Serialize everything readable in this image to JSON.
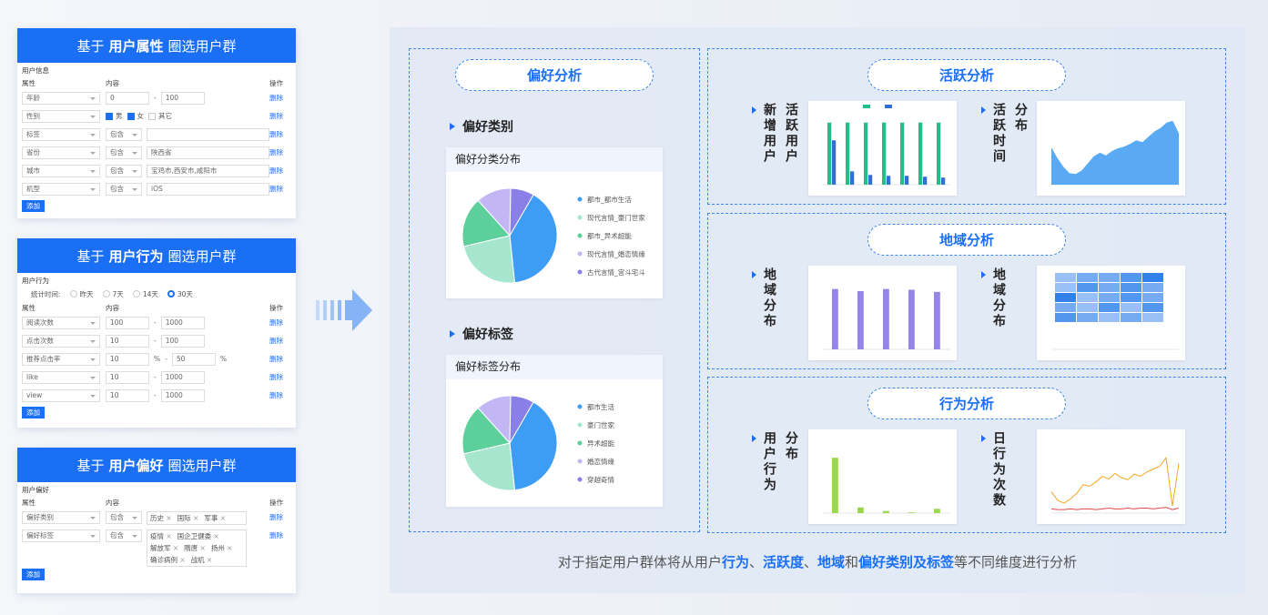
{
  "forms": [
    {
      "title_pre": "基于",
      "title_bold": "用户属性",
      "title_post": "圈选用户群",
      "section": "用户信息",
      "headers": [
        "属性",
        "内容",
        "操作"
      ],
      "rows": [
        {
          "attr": "年龄",
          "content": [
            {
              "kind": "input",
              "text": "0"
            },
            {
              "kind": "sep",
              "text": "-"
            },
            {
              "kind": "input",
              "text": "100"
            }
          ],
          "action": "删除"
        },
        {
          "attr": "性别",
          "content": [
            {
              "kind": "check",
              "text": "男",
              "checked": true
            },
            {
              "kind": "check",
              "text": "女",
              "checked": true
            },
            {
              "kind": "check",
              "text": "其它",
              "checked": false
            }
          ],
          "action": "删除"
        },
        {
          "attr": "标签",
          "content": [
            {
              "kind": "select",
              "text": "包含"
            },
            {
              "kind": "input"
            }
          ],
          "action": "删除"
        },
        {
          "attr": "省份",
          "content": [
            {
              "kind": "select",
              "text": "包含"
            },
            {
              "kind": "input",
              "text": "陕西省"
            }
          ],
          "action": "删除"
        },
        {
          "attr": "城市",
          "content": [
            {
              "kind": "select",
              "text": "包含"
            },
            {
              "kind": "input",
              "text": "宝鸡市,西安市,咸阳市"
            }
          ],
          "action": "删除"
        },
        {
          "attr": "机型",
          "content": [
            {
              "kind": "select",
              "text": "包含"
            },
            {
              "kind": "input",
              "text": "iOS"
            }
          ],
          "action": "删除"
        }
      ],
      "add": "添加"
    },
    {
      "title_pre": "基于",
      "title_bold": "用户行为",
      "title_post": "圈选用户群",
      "section": "用户行为",
      "period": {
        "label": "统计时间:",
        "options": [
          "昨天",
          "7天",
          "14天",
          "30天"
        ],
        "selected": 3
      },
      "headers": [
        "属性",
        "内容",
        "操作"
      ],
      "rows": [
        {
          "attr": "阅读次数",
          "content": [
            {
              "kind": "input",
              "text": "100"
            },
            {
              "kind": "sep",
              "text": "-"
            },
            {
              "kind": "input",
              "text": "1000"
            }
          ],
          "action": "删除"
        },
        {
          "attr": "点击次数",
          "content": [
            {
              "kind": "input",
              "text": "10"
            },
            {
              "kind": "sep",
              "text": "-"
            },
            {
              "kind": "input",
              "text": "100"
            }
          ],
          "action": "删除"
        },
        {
          "attr": "推荐点击率",
          "content": [
            {
              "kind": "input",
              "text": "10"
            },
            {
              "kind": "unit",
              "text": "%"
            },
            {
              "kind": "sep",
              "text": "-"
            },
            {
              "kind": "input",
              "text": "50"
            },
            {
              "kind": "unit",
              "text": "%"
            }
          ],
          "action": "删除"
        },
        {
          "attr": "like",
          "content": [
            {
              "kind": "input",
              "text": "10"
            },
            {
              "kind": "sep",
              "text": "-"
            },
            {
              "kind": "input",
              "text": "1000"
            }
          ],
          "action": "删除"
        },
        {
          "attr": "view",
          "content": [
            {
              "kind": "input",
              "text": "10"
            },
            {
              "kind": "sep",
              "text": "-"
            },
            {
              "kind": "input",
              "text": "1000"
            }
          ],
          "action": "删除"
        }
      ],
      "add": "添加"
    },
    {
      "title_pre": "基于",
      "title_bold": "用户偏好",
      "title_post": "圈选用户群",
      "section": "用户偏好",
      "headers": [
        "属性",
        "内容",
        "操作"
      ],
      "rows": [
        {
          "attr": "偏好类别",
          "content": [
            {
              "kind": "select",
              "text": "包含"
            },
            {
              "kind": "tags",
              "items": [
                "历史",
                "国际",
                "军事"
              ]
            }
          ],
          "action": "删除"
        },
        {
          "attr": "偏好标签",
          "content": [
            {
              "kind": "select",
              "text": "包含"
            },
            {
              "kind": "tags",
              "items": [
                "疫情",
                "国企卫健委",
                "解放军",
                "隋唐",
                "扬州",
                "确诊病例",
                "战机"
              ]
            }
          ],
          "action": "删除"
        }
      ],
      "add": "添加"
    }
  ],
  "center": {
    "title": "偏好分析",
    "sections": [
      {
        "heading": "偏好类别",
        "card_title": "偏好分类分布",
        "chart": {
          "type": "pie",
          "categories": [
            "都市_都市生活",
            "现代言情_豪门世家",
            "都市_异术超能",
            "现代言情_婚恋情缘",
            "古代言情_宫斗宅斗"
          ],
          "values": [
            40,
            23,
            17,
            12,
            8
          ],
          "colors": [
            "#3d9df5",
            "#a6e6cf",
            "#5ccf9b",
            "#c2b6f5",
            "#8a7fe6"
          ]
        }
      },
      {
        "heading": "偏好标签",
        "card_title": "偏好标签分布",
        "chart": {
          "type": "pie",
          "categories": [
            "都市生活",
            "豪门世家",
            "异术超能",
            "婚恋情缘",
            "穿越奇情"
          ],
          "values": [
            40,
            23,
            17,
            12,
            8
          ],
          "colors": [
            "#3d9df5",
            "#a6e6cf",
            "#5ccf9b",
            "#c2b6f5",
            "#8a7fe6"
          ]
        }
      }
    ]
  },
  "panels": [
    {
      "title": "活跃分析",
      "items": [
        {
          "label": [
            "新增用户",
            "活跃用户"
          ],
          "chart": {
            "type": "bar",
            "ylim": [
              0,
              80
            ],
            "series": [
              {
                "color": "#1fc08b",
                "values": [
                  70,
                  70,
                  70,
                  70,
                  70,
                  70,
                  70
                ]
              },
              {
                "color": "#2f6fd6",
                "values": [
                  50,
                  15,
                  11,
                  10,
                  10,
                  9,
                  8
                ]
              }
            ]
          }
        },
        {
          "label": [
            "活跃时间",
            "分布"
          ],
          "chart": {
            "type": "area",
            "ylim": [
              0,
              80
            ],
            "color": "#5aa9f5",
            "values": [
              42,
              30,
              20,
              13,
              12,
              16,
              24,
              32,
              36,
              33,
              38,
              41,
              43,
              46,
              50,
              48,
              54,
              60,
              64,
              70,
              72,
              58
            ]
          }
        }
      ]
    },
    {
      "title": "地域分析",
      "items": [
        {
          "label": [
            "地域分布"
          ],
          "chart": {
            "type": "bar",
            "ylim": [
              0,
              100
            ],
            "series": [
              {
                "color": "#9486e8",
                "values": [
                  85,
                  82,
                  85,
                  84,
                  81
                ]
              }
            ]
          }
        },
        {
          "label": [
            "地域分布"
          ],
          "chart": {
            "type": "heatmap",
            "color": "#1a73e8",
            "values": [
              [
                2,
                3,
                3,
                4,
                5
              ],
              [
                2,
                4,
                3,
                4,
                3
              ],
              [
                5,
                2,
                3,
                4,
                3
              ],
              [
                3,
                2,
                4,
                2,
                4
              ],
              [
                4,
                3,
                2,
                3,
                2
              ]
            ]
          }
        }
      ]
    },
    {
      "title": "行为分析",
      "items": [
        {
          "label": [
            "用户行为",
            "分布"
          ],
          "chart": {
            "type": "bar",
            "ylim": [
              0,
              100
            ],
            "series": [
              {
                "color": "#9ad84a",
                "values": [
                  78,
                  8,
                  3,
                  1,
                  6
                ]
              }
            ]
          }
        },
        {
          "label": [
            "日行为次数"
          ],
          "chart": {
            "type": "line",
            "ylim": [
              0,
              100
            ],
            "series": [
              {
                "color": "#f5a623",
                "values": [
                  30,
                  18,
                  14,
                  20,
                  28,
                  40,
                  38,
                  44,
                  52,
                  48,
                  56,
                  50,
                  47,
                  55,
                  52,
                  58,
                  62,
                  66,
                  78,
                  10,
                  70
                ]
              },
              {
                "color": "#e0484b",
                "values": [
                  6,
                  5,
                  5,
                  6,
                  5,
                  6,
                  6,
                  5,
                  6,
                  7,
                  6,
                  6,
                  7,
                  6,
                  7,
                  7,
                  6,
                  7,
                  8,
                  5,
                  7
                ]
              }
            ]
          }
        }
      ]
    }
  ],
  "caption": [
    {
      "text": "对于指定用户群体将从用户",
      "bold": false
    },
    {
      "text": "行为",
      "bold": true
    },
    {
      "text": "、",
      "bold": false
    },
    {
      "text": "活跃度",
      "bold": true
    },
    {
      "text": "、",
      "bold": false
    },
    {
      "text": "地域",
      "bold": true
    },
    {
      "text": "和",
      "bold": false
    },
    {
      "text": "偏好类别及标签",
      "bold": true
    },
    {
      "text": "等不同维度进行分析",
      "bold": false
    }
  ]
}
